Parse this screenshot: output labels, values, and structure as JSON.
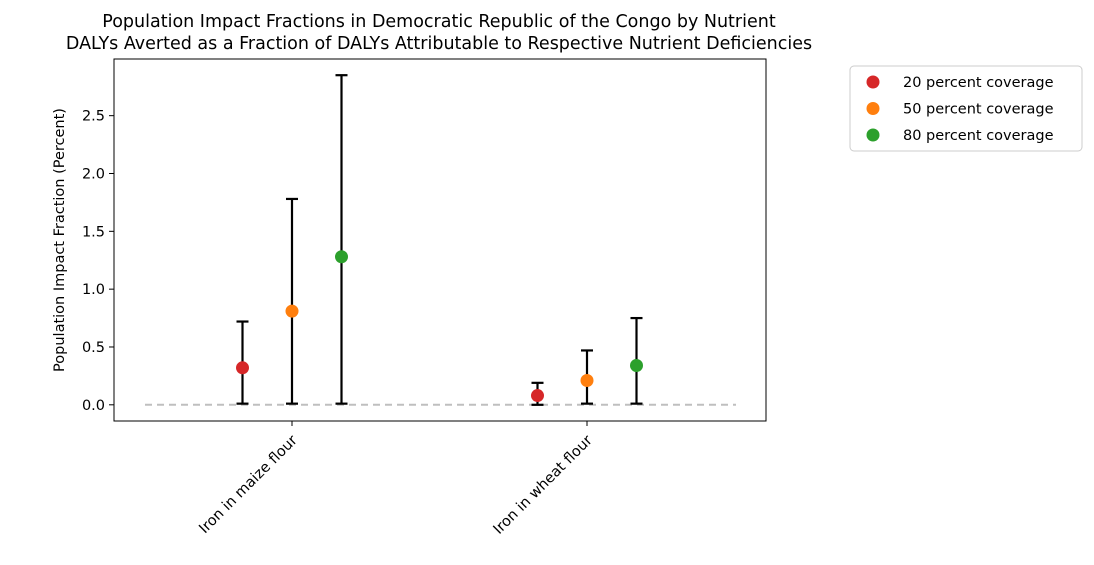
{
  "chart_data": {
    "type": "scatter",
    "title": "Population Impact Fractions in Democratic Republic of the Congo by Nutrient",
    "subtitle": "DALYs Averted as a Fraction of DALYs Attributable to Respective Nutrient Deficiencies",
    "xlabel": "",
    "ylabel": "Population Impact Fraction (Percent)",
    "ylim": [
      -0.14,
      2.99
    ],
    "yticks": [
      "0.0",
      "0.5",
      "1.0",
      "1.5",
      "2.0",
      "2.5"
    ],
    "ytick_values": [
      0.0,
      0.5,
      1.0,
      1.5,
      2.0,
      2.5
    ],
    "categories": [
      "Iron in maize flour",
      "Iron in wheat flour"
    ],
    "series": [
      {
        "name": "20 percent coverage",
        "color": "#d62728",
        "values": [
          0.32,
          0.08
        ],
        "lower": [
          0.01,
          0.0
        ],
        "upper": [
          0.72,
          0.19
        ]
      },
      {
        "name": "50 percent coverage",
        "color": "#ff7f0e",
        "values": [
          0.81,
          0.21
        ],
        "lower": [
          0.01,
          0.01
        ],
        "upper": [
          1.78,
          0.47
        ]
      },
      {
        "name": "80 percent coverage",
        "color": "#2ca02c",
        "values": [
          1.28,
          0.34
        ],
        "lower": [
          0.01,
          0.01
        ],
        "upper": [
          2.85,
          0.75
        ]
      }
    ],
    "reference_line": {
      "y": 0.0,
      "style": "dashed",
      "color": "#bfbfbf"
    },
    "legend_position": "outside-top-right",
    "grid": false
  }
}
